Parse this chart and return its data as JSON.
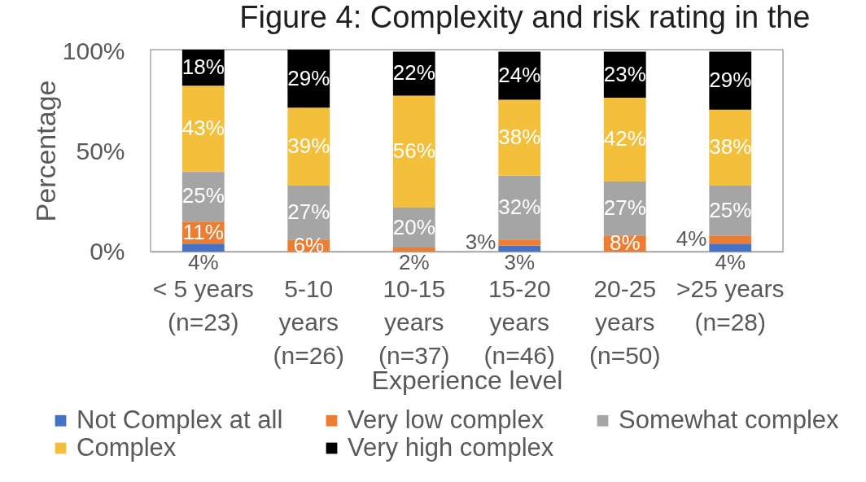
{
  "chart_data": {
    "type": "bar",
    "stacked": true,
    "title": "Figure 4: Complexity and risk rating in the",
    "xlabel": "Experience level",
    "ylabel": "Percentage",
    "categories": [
      "< 5 years (n=23)",
      "5-10 years (n=26)",
      "10-15 years (n=37)",
      "15-20 years (n=46)",
      "20-25 years (n=50)",
      ">25 years (n=28)"
    ],
    "ylim": [
      0,
      101
    ],
    "yticks": [
      {
        "value": 0,
        "label": "0%"
      },
      {
        "value": 50,
        "label": "50%"
      },
      {
        "value": 100,
        "label": "100%"
      }
    ],
    "grid": false,
    "legend": "bottom",
    "series": [
      {
        "name": "Not Complex at all",
        "color": "#4472c4",
        "values": [
          4,
          null,
          null,
          3,
          null,
          4
        ],
        "value_labels": [
          "4%",
          null,
          null,
          "3%",
          null,
          "4%"
        ]
      },
      {
        "name": "Very low complex",
        "color": "#ed7d31",
        "values": [
          11,
          6,
          2,
          3,
          8,
          4
        ],
        "value_labels": [
          "11%",
          "6%",
          "2%",
          "3%",
          "8%",
          "4%"
        ]
      },
      {
        "name": "Somewhat complex",
        "color": "#a5a5a5",
        "values": [
          25,
          27,
          20,
          32,
          27,
          25
        ],
        "value_labels": [
          "25%",
          "27%",
          "20%",
          "32%",
          "27%",
          "25%"
        ]
      },
      {
        "name": "Complex",
        "color": "#f4bf3a",
        "values": [
          43,
          39,
          56,
          38,
          42,
          38
        ],
        "value_labels": [
          "43%",
          "39%",
          "56%",
          "38%",
          "42%",
          "38%"
        ]
      },
      {
        "name": "Very high complex",
        "color": "#000000",
        "values": [
          18,
          29,
          22,
          24,
          23,
          29
        ],
        "value_labels": [
          "18%",
          "29%",
          "22%",
          "24%",
          "23%",
          "29%"
        ]
      }
    ]
  }
}
